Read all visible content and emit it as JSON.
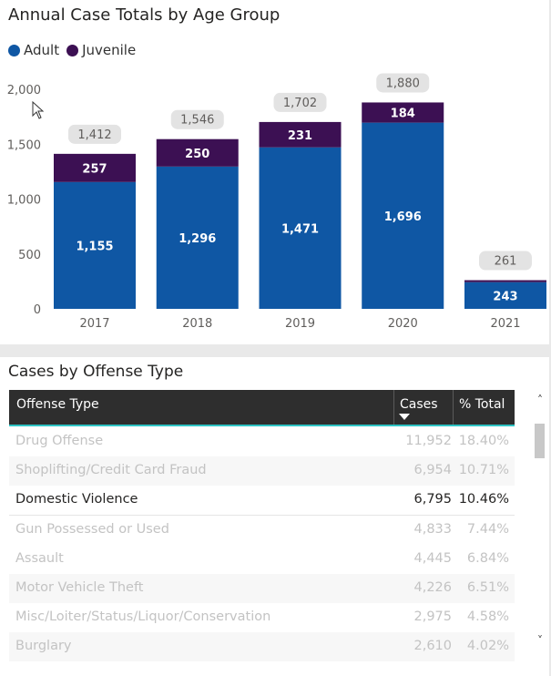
{
  "chart": {
    "title": "Annual Case Totals by Age Group",
    "legend": [
      {
        "label": "Adult",
        "color": "#0f57a4"
      },
      {
        "label": "Juvenile",
        "color": "#3c1053"
      }
    ]
  },
  "chart_data": {
    "type": "bar",
    "stacked": true,
    "title": "Annual Case Totals by Age Group",
    "categories": [
      "2017",
      "2018",
      "2019",
      "2020",
      "2021"
    ],
    "series": [
      {
        "name": "Adult",
        "values": [
          1155,
          1296,
          1471,
          1696,
          243
        ],
        "color": "#0f57a4"
      },
      {
        "name": "Juvenile",
        "values": [
          257,
          250,
          231,
          184,
          18
        ],
        "color": "#3c1053"
      }
    ],
    "totals": [
      1412,
      1546,
      1702,
      1880,
      261
    ],
    "ylim": [
      0,
      2000
    ],
    "yticks": [
      0,
      500,
      1000,
      1500,
      2000
    ],
    "ytick_labels": [
      "0",
      "500",
      "1,000",
      "1,500",
      "2,000"
    ],
    "value_labels": {
      "Adult": [
        "1,155",
        "1,296",
        "1,471",
        "1,696",
        "243"
      ],
      "Juvenile": [
        "257",
        "250",
        "231",
        "184",
        ""
      ],
      "totals": [
        "1,412",
        "1,546",
        "1,702",
        "1,880",
        "261"
      ]
    },
    "legend_position": "top-left",
    "grid": false
  },
  "table": {
    "title": "Cases by Offense Type",
    "columns": {
      "offense": "Offense Type",
      "cases": "Cases",
      "pct": "% Total"
    },
    "rows": [
      {
        "offense": "Drug Offense",
        "cases": "11,952",
        "pct": "18.40%"
      },
      {
        "offense": "Shoplifting/Credit Card Fraud",
        "cases": "6,954",
        "pct": "10.71%"
      },
      {
        "offense": "Domestic Violence",
        "cases": "6,795",
        "pct": "10.46%"
      },
      {
        "offense": "Gun Possessed or Used",
        "cases": "4,833",
        "pct": "7.44%"
      },
      {
        "offense": "Assault",
        "cases": "4,445",
        "pct": "6.84%"
      },
      {
        "offense": "Motor Vehicle Theft",
        "cases": "4,226",
        "pct": "6.51%"
      },
      {
        "offense": "Misc/Loiter/Status/Liquor/Conservation",
        "cases": "2,975",
        "pct": "4.58%"
      },
      {
        "offense": "Burglary",
        "cases": "2,610",
        "pct": "4.02%"
      }
    ],
    "scroll_up_icon": "chevron-up-icon",
    "scroll_down_icon": "chevron-down-icon",
    "sort_icon": "sort-descending-icon"
  }
}
